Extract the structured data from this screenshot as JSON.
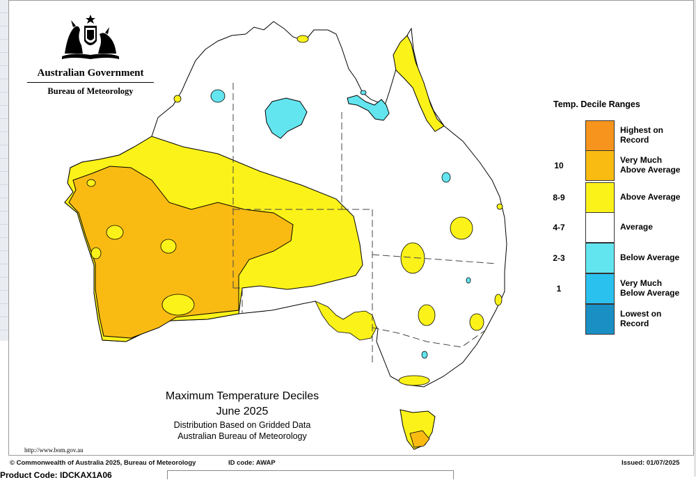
{
  "agency": {
    "government": "Australian Government",
    "bureau": "Bureau of Meteorology",
    "crest_icon": "coat-of-arms-icon"
  },
  "title": {
    "line1": "Maximum Temperature Deciles",
    "line2": "June 2025",
    "line3": "Distribution Based on Gridded Data",
    "line4": "Australian Bureau of Meteorology"
  },
  "legend": {
    "title": "Temp. Decile Ranges",
    "items": [
      {
        "range": "",
        "label": "Highest on Record",
        "color": "#f7941d"
      },
      {
        "range": "10",
        "label": "Very Much Above Average",
        "color": "#f9bb12"
      },
      {
        "range": "8-9",
        "label": "Above Average",
        "color": "#fbf219"
      },
      {
        "range": "4-7",
        "label": "Average",
        "color": "#ffffff"
      },
      {
        "range": "2-3",
        "label": "Below Average",
        "color": "#63e5ef"
      },
      {
        "range": "1",
        "label": "Very Much Below Average",
        "color": "#2bc1ee"
      },
      {
        "range": "",
        "label": "Lowest on Record",
        "color": "#1a8fc4"
      }
    ]
  },
  "url": "http://www.bom.gov.au",
  "footer": {
    "copyright": "© Commonwealth of Australia 2025, Bureau of Meteorology",
    "id_code": "ID code: AWAP",
    "issued": "Issued: 01/07/2025"
  },
  "product_code_label": "Product Code: IDCKAX1A06"
}
